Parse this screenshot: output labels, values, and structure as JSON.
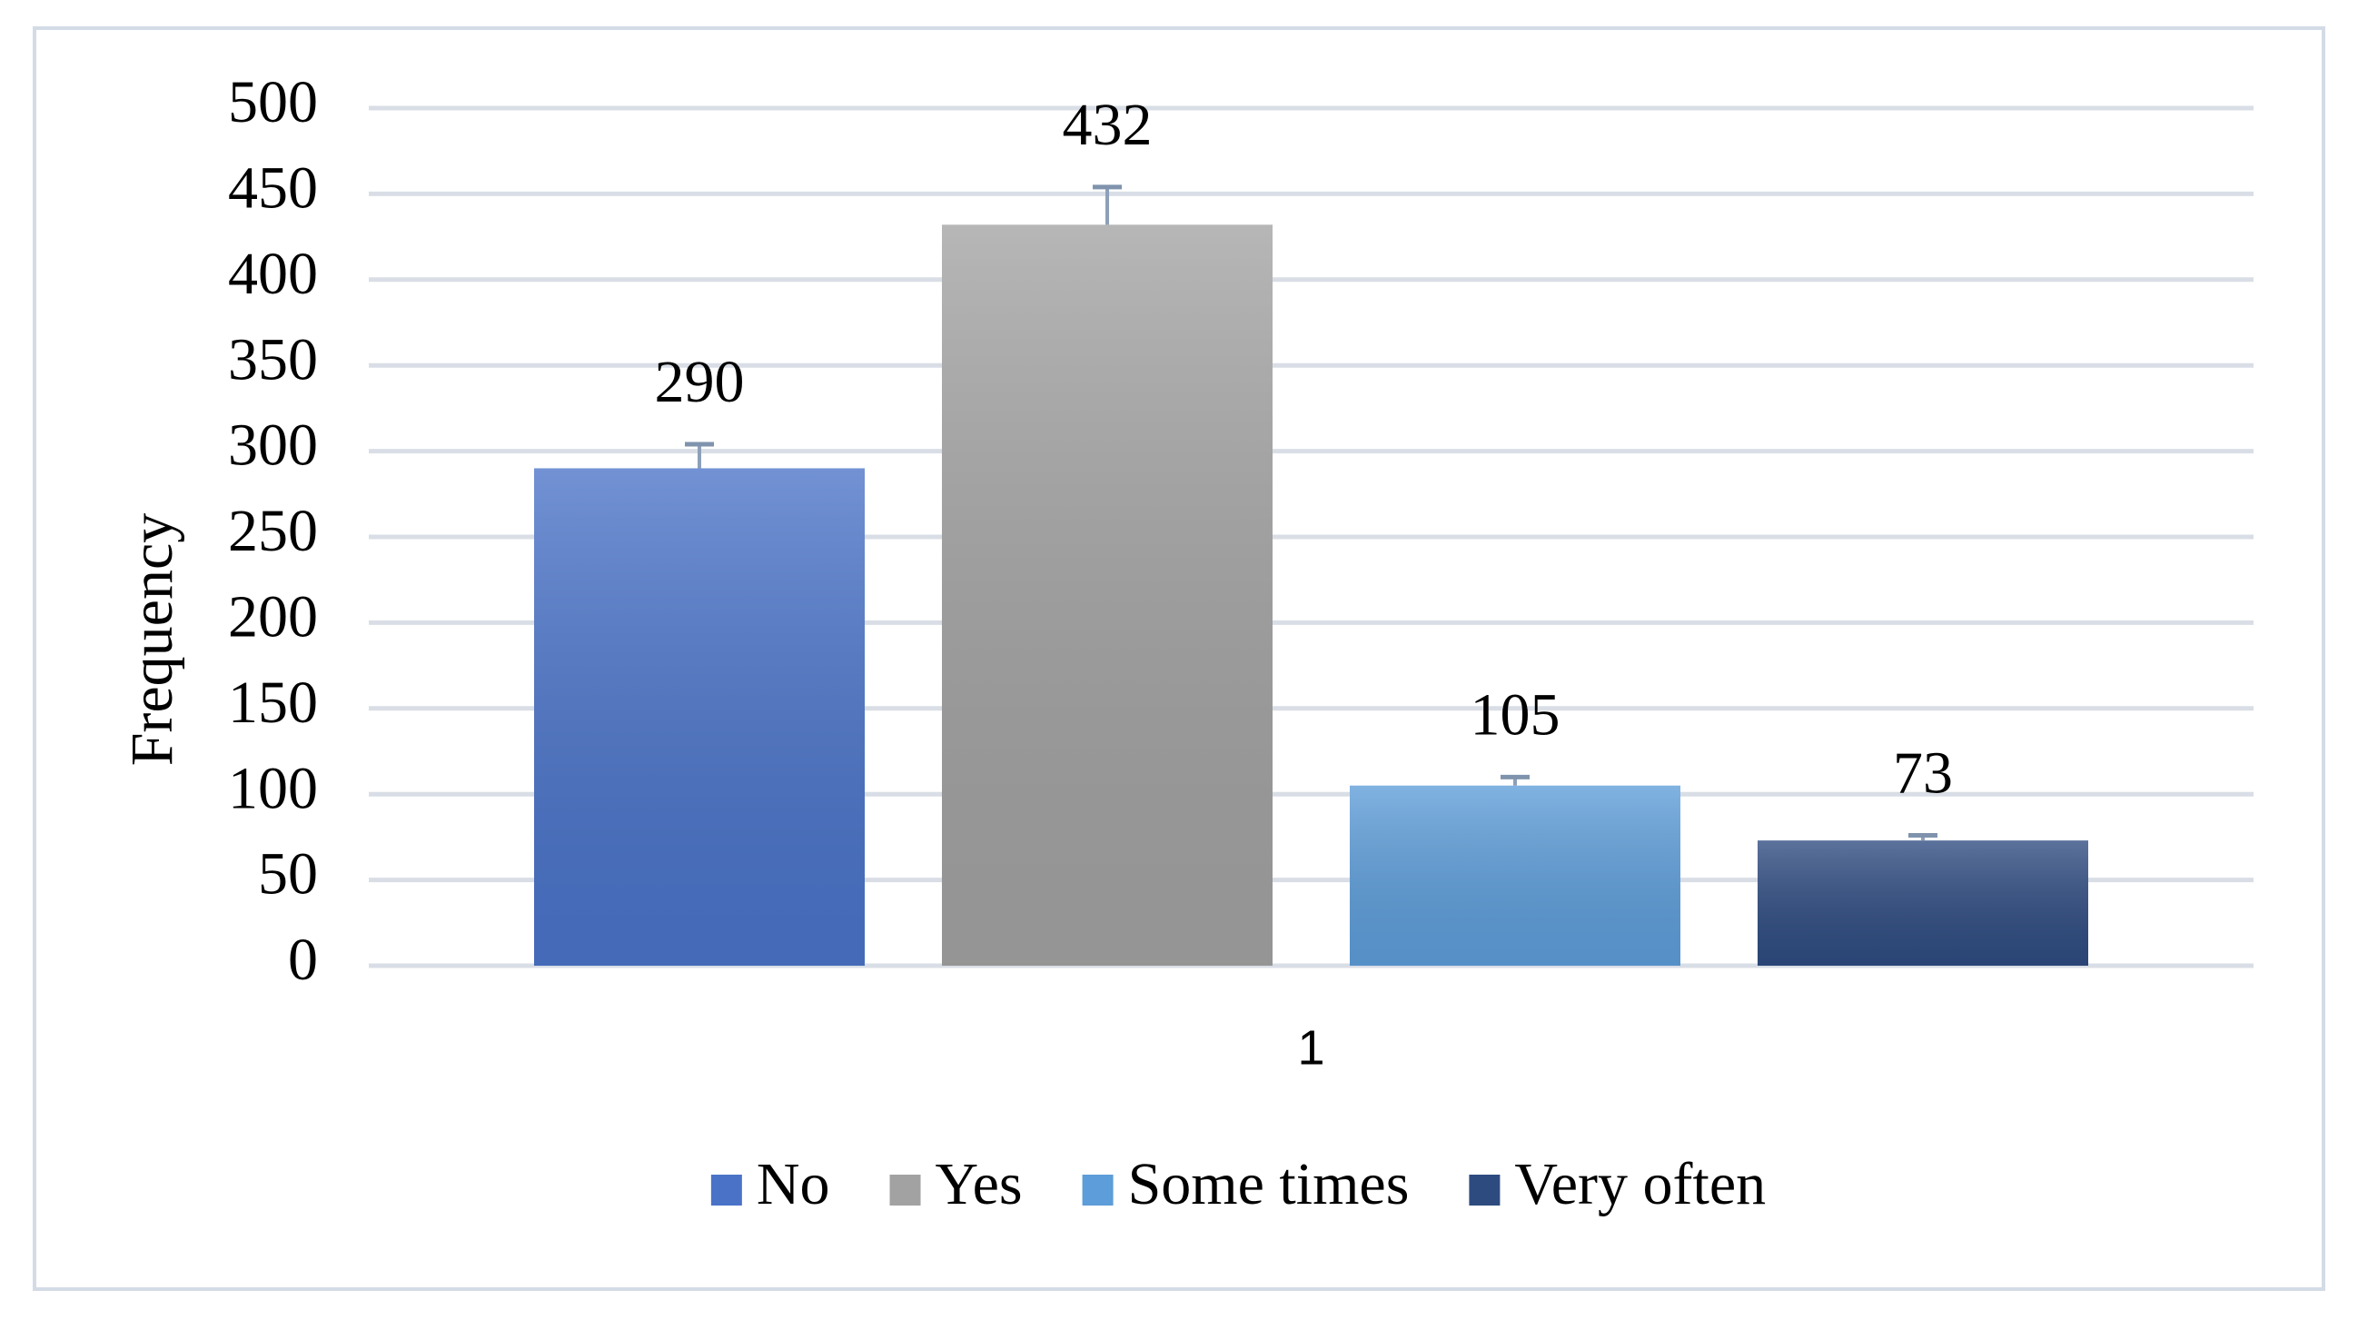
{
  "chart_data": {
    "type": "bar",
    "y_label": "Frequency",
    "categories": [
      "1"
    ],
    "series": [
      {
        "name": "No",
        "color": "#4a73c8",
        "values": [
          290
        ],
        "errors": [
          14
        ]
      },
      {
        "name": "Yes",
        "color": "#a2a2a2",
        "values": [
          432
        ],
        "errors": [
          22
        ]
      },
      {
        "name": "Some times",
        "color": "#5d9dd9",
        "values": [
          105
        ],
        "errors": [
          5
        ]
      },
      {
        "name": "Very often",
        "color": "#2e4b80",
        "values": [
          73
        ],
        "errors": [
          3
        ]
      }
    ],
    "ylim": [
      0,
      500
    ],
    "yticks": [
      0,
      50,
      100,
      150,
      200,
      250,
      300,
      350,
      400,
      450,
      500
    ],
    "grid": true,
    "legend": "bottom"
  }
}
